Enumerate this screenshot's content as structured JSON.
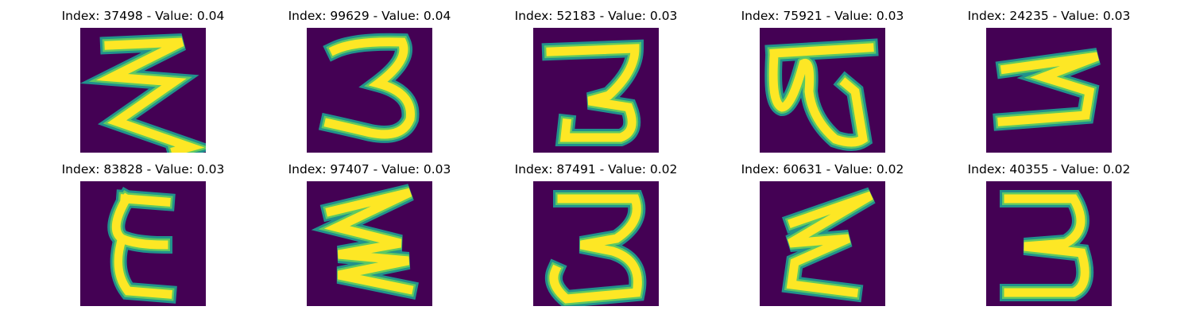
{
  "chart_data": {
    "type": "image-grid",
    "colormap": "viridis",
    "colors": {
      "background": "#440154",
      "stroke_edge": "#21918c",
      "stroke_core": "#fde725",
      "stroke_mid": "#5ec962"
    },
    "panels": [
      {
        "index": 37498,
        "value": 0.04,
        "title": "Index: 37498 - Value: 0.04",
        "glyph": "zigzag-3"
      },
      {
        "index": 99629,
        "value": 0.04,
        "title": "Index: 99629 - Value: 0.04",
        "glyph": "three"
      },
      {
        "index": 52183,
        "value": 0.03,
        "title": "Index: 52183 - Value: 0.03",
        "glyph": "three-flat"
      },
      {
        "index": 75921,
        "value": 0.03,
        "title": "Index: 75921 - Value: 0.03",
        "glyph": "loop-w"
      },
      {
        "index": 24235,
        "value": 0.03,
        "title": "Index: 24235 - Value: 0.03",
        "glyph": "three-small"
      },
      {
        "index": 83828,
        "value": 0.03,
        "title": "Index: 83828 - Value: 0.03",
        "glyph": "epsilon"
      },
      {
        "index": 97407,
        "value": 0.03,
        "title": "Index: 97407 - Value: 0.03",
        "glyph": "zigzag-4"
      },
      {
        "index": 87491,
        "value": 0.02,
        "title": "Index: 87491 - Value: 0.02",
        "glyph": "three-bold"
      },
      {
        "index": 60631,
        "value": 0.02,
        "title": "Index: 60631 - Value: 0.02",
        "glyph": "zigzag-3b"
      },
      {
        "index": 40355,
        "value": 0.02,
        "title": "Index: 40355 - Value: 0.02",
        "glyph": "three-wide"
      }
    ]
  }
}
